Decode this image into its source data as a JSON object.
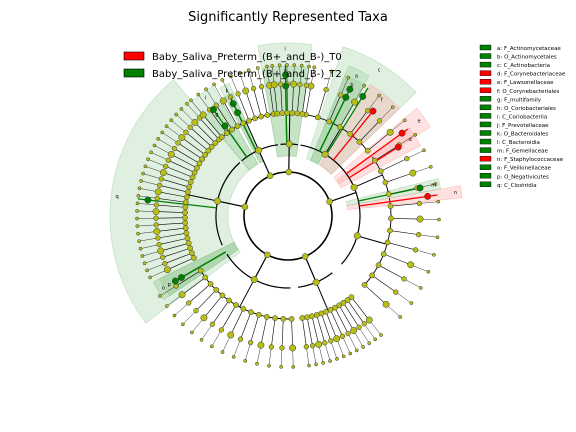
{
  "chart_data": {
    "type": "cladogram",
    "title": "Significantly Represented Taxa",
    "series": [
      {
        "name": "Baby_Saliva_Preterm_(B+_and_B-)_T0",
        "color": "#ff0000"
      },
      {
        "name": "Baby_Saliva_Preterm_(B+_and_B-)_T2",
        "color": "#008000"
      }
    ],
    "taxa": [
      {
        "key": "a",
        "name": "F_Actinomycetaceae",
        "group": "T2"
      },
      {
        "key": "b",
        "name": "O_Actinomycetales",
        "group": "T2"
      },
      {
        "key": "c",
        "name": "C_Actinobacteria",
        "group": "T2"
      },
      {
        "key": "d",
        "name": "F_Corynebacteriaceae",
        "group": "T0"
      },
      {
        "key": "e",
        "name": "F_Lawsonellaceae",
        "group": "T0"
      },
      {
        "key": "f",
        "name": "O_Corynebacteriales",
        "group": "T0"
      },
      {
        "key": "g",
        "name": "F_multifamily",
        "group": "T2"
      },
      {
        "key": "h",
        "name": "O_Coriobacteriales",
        "group": "T2"
      },
      {
        "key": "i",
        "name": "C_Coriobacteriia",
        "group": "T2"
      },
      {
        "key": "j",
        "name": "F_Prevotellaceae",
        "group": "T2"
      },
      {
        "key": "k",
        "name": "O_Bacteroidales",
        "group": "T2"
      },
      {
        "key": "l",
        "name": "C_Bacteroidia",
        "group": "T2"
      },
      {
        "key": "m",
        "name": "F_Gemellaceae",
        "group": "T2"
      },
      {
        "key": "n",
        "name": "F_Staphylococcaceae",
        "group": "T0"
      },
      {
        "key": "o",
        "name": "F_Veillonellaceae",
        "group": "T2"
      },
      {
        "key": "p",
        "name": "O_Negativicutes",
        "group": "T2"
      },
      {
        "key": "q",
        "name": "C_Clostridia",
        "group": "T2"
      }
    ]
  }
}
